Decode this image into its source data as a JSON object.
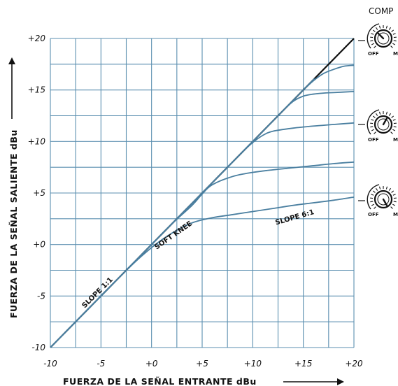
{
  "chart_data": {
    "type": "line",
    "title": "",
    "xlabel": "FUERZA DE LA SEÑAL ENTRANTE dBu",
    "ylabel": "FUERZA DE LA SEÑAL  SALIENTE dBu",
    "xlim": [
      -10,
      20
    ],
    "ylim": [
      -10,
      20
    ],
    "x_ticks": [
      -10,
      -5,
      0,
      5,
      10,
      15,
      20
    ],
    "x_tick_labels": [
      "-10",
      "-5",
      "+0",
      "+5",
      "+10",
      "+15",
      "+20"
    ],
    "y_ticks": [
      -10,
      -5,
      0,
      5,
      10,
      15,
      20
    ],
    "y_tick_labels": [
      "-10",
      "-5",
      "+0",
      "+5",
      "+10",
      "+15",
      "+20"
    ],
    "grid": true,
    "series": [
      {
        "x": [
          -10,
          20
        ],
        "y": [
          -10,
          20
        ],
        "color": "#111111"
      },
      {
        "x": [
          -10,
          -3,
          0,
          2,
          4,
          6,
          8,
          10,
          12,
          14,
          16,
          18,
          20
        ],
        "y": [
          -10,
          -3,
          -0.3,
          1.1,
          2.1,
          2.6,
          2.9,
          3.2,
          3.5,
          3.8,
          4.05,
          4.3,
          4.6
        ],
        "color": "#4a7fa0"
      },
      {
        "x": [
          -10,
          0,
          2,
          4,
          5,
          6,
          8,
          10,
          12,
          14,
          16,
          18,
          20
        ],
        "y": [
          -10,
          0,
          2,
          3.8,
          4.9,
          5.8,
          6.6,
          7.0,
          7.25,
          7.45,
          7.65,
          7.85,
          8.0
        ],
        "color": "#4a7fa0"
      },
      {
        "x": [
          -10,
          8,
          9,
          10,
          11,
          12,
          14,
          16,
          18,
          20
        ],
        "y": [
          -10,
          8,
          9,
          9.9,
          10.6,
          11.0,
          11.3,
          11.5,
          11.65,
          11.8
        ],
        "color": "#4a7fa0"
      },
      {
        "x": [
          -10,
          12,
          13,
          14,
          15,
          16,
          17,
          18,
          20
        ],
        "y": [
          -10,
          12,
          13,
          13.9,
          14.4,
          14.6,
          14.7,
          14.75,
          14.85
        ],
        "color": "#4a7fa0"
      },
      {
        "x": [
          -10,
          14,
          15,
          16,
          17,
          18,
          19,
          20
        ],
        "y": [
          -10,
          14,
          15,
          15.9,
          16.6,
          17.0,
          17.3,
          17.4
        ],
        "color": "#4a7fa0"
      }
    ],
    "annotations": [
      {
        "text": "SLOPE 1:1",
        "x": -6.6,
        "y": -6.2
      },
      {
        "text": "SOFT KNEE",
        "x": 0.5,
        "y": -0.5
      },
      {
        "text": "SLOPE 6:1",
        "x": 12.3,
        "y": 1.9
      }
    ],
    "compressor_title": "COMP",
    "knob_off": "OFF",
    "knob_max": "M"
  }
}
